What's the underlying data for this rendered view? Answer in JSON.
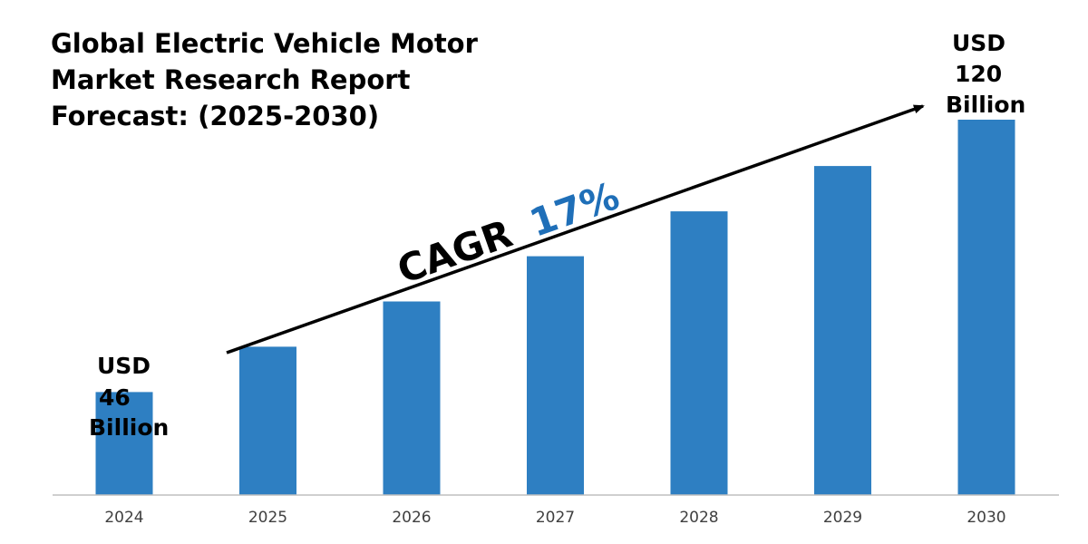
{
  "chart_data": {
    "type": "bar",
    "title": [
      "Global Electric Vehicle Motor",
      "Market Research Report",
      "Forecast: (2025-2030)"
    ],
    "categories": [
      "2024",
      "2025",
      "2026",
      "2027",
      "2028",
      "2029",
      "2030"
    ],
    "values": [
      46,
      58.3,
      70.6,
      82.9,
      95.1,
      107.4,
      120
    ],
    "unit": "USD Billion",
    "ylim": [
      18,
      120
    ],
    "xlabel": "",
    "ylabel": "",
    "grid": false,
    "bar_color": "#2E7FC2",
    "annotations": {
      "start": [
        "USD",
        "46",
        "Billion"
      ],
      "end": [
        "USD",
        "120",
        "Billion"
      ],
      "cagr_label": "CAGR",
      "cagr_value": "17%",
      "cagr_color": "#1F6FB8"
    }
  }
}
